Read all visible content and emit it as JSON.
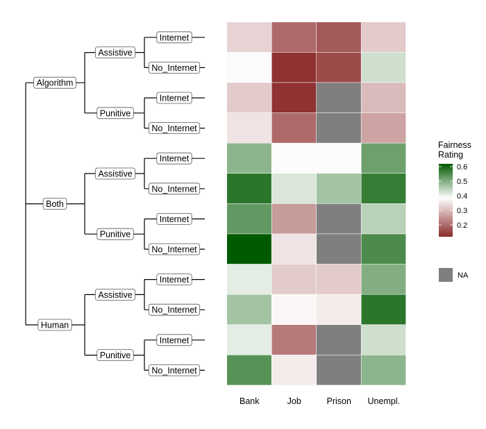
{
  "chart_data": {
    "type": "heatmap",
    "title": "",
    "columns": [
      "Bank",
      "Job",
      "Prison",
      "Unempl."
    ],
    "row_hierarchy": {
      "level1": [
        "Algorithm",
        "Both",
        "Human"
      ],
      "level2": [
        "Assistive",
        "Punitive"
      ],
      "level3": [
        "Internet",
        "No_Internet"
      ]
    },
    "rows": [
      {
        "agent": "Algorithm",
        "type": "Assistive",
        "access": "Internet",
        "values": [
          0.33,
          0.2,
          0.18,
          0.32
        ]
      },
      {
        "agent": "Algorithm",
        "type": "Assistive",
        "access": "No_Internet",
        "values": [
          0.39,
          0.13,
          0.16,
          0.43
        ]
      },
      {
        "agent": "Algorithm",
        "type": "Punitive",
        "access": "Internet",
        "values": [
          0.32,
          0.13,
          null,
          0.3
        ]
      },
      {
        "agent": "Algorithm",
        "type": "Punitive",
        "access": "No_Internet",
        "values": [
          0.35,
          0.2,
          null,
          0.27
        ]
      },
      {
        "agent": "Both",
        "type": "Assistive",
        "access": "Internet",
        "values": [
          0.49,
          0.38,
          0.38,
          0.52
        ]
      },
      {
        "agent": "Both",
        "type": "Assistive",
        "access": "No_Internet",
        "values": [
          0.58,
          0.42,
          0.47,
          0.57
        ]
      },
      {
        "agent": "Both",
        "type": "Punitive",
        "access": "Internet",
        "values": [
          0.53,
          0.26,
          null,
          0.45
        ]
      },
      {
        "agent": "Both",
        "type": "Punitive",
        "access": "No_Internet",
        "values": [
          0.62,
          0.35,
          null,
          0.55
        ]
      },
      {
        "agent": "Human",
        "type": "Assistive",
        "access": "Internet",
        "values": [
          0.41,
          0.32,
          0.32,
          0.5
        ]
      },
      {
        "agent": "Human",
        "type": "Assistive",
        "access": "No_Internet",
        "values": [
          0.47,
          0.375,
          0.36,
          0.58
        ]
      },
      {
        "agent": "Human",
        "type": "Punitive",
        "access": "Internet",
        "values": [
          0.41,
          0.22,
          null,
          0.43
        ]
      },
      {
        "agent": "Human",
        "type": "Punitive",
        "access": "No_Internet",
        "values": [
          0.54,
          0.36,
          null,
          0.49
        ]
      }
    ],
    "color_scale": {
      "low": "#8b2a2a",
      "mid": "#ffffff",
      "high": "#005a00",
      "min": 0.12,
      "mid_value": 0.385,
      "max": 0.62,
      "na_color": "#7f7f7f"
    },
    "legend": {
      "title_line1": "Fairness",
      "title_line2": "Rating",
      "ticks": [
        "0.6",
        "0.5",
        "0.4",
        "0.3",
        "0.2"
      ],
      "tick_values": [
        0.6,
        0.5,
        0.4,
        0.3,
        0.2
      ],
      "na_label": "NA",
      "placement": "right"
    }
  }
}
